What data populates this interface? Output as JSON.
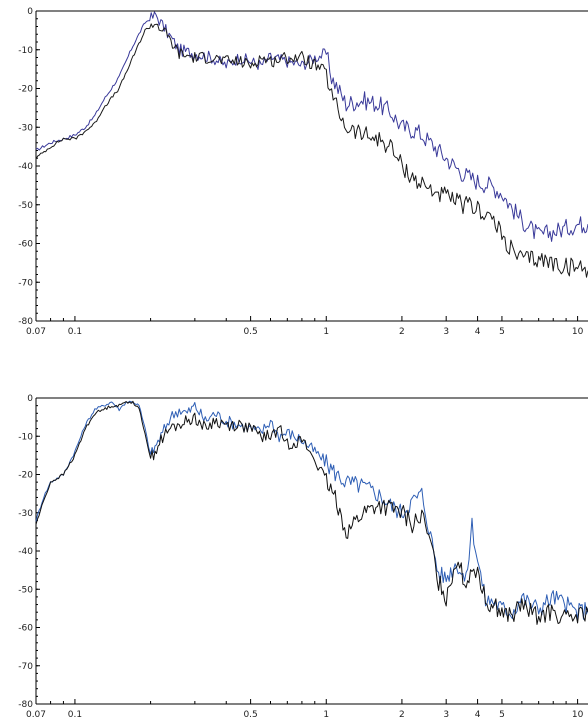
{
  "chart_data": [
    {
      "type": "line",
      "xscale": "log",
      "xlim": [
        0.07,
        11
      ],
      "ylim": [
        -80,
        0
      ],
      "xticks": [
        0.07,
        0.1,
        0.5,
        1,
        2,
        3,
        4,
        5,
        10
      ],
      "xtick_labels": [
        "0.07",
        "0.1",
        "0.5",
        "1",
        "2",
        "3",
        "4",
        "5",
        "10"
      ],
      "yticks": [
        0,
        -10,
        -20,
        -30,
        -40,
        -50,
        -60,
        -70,
        -80
      ],
      "ytick_labels": [
        "0",
        "-10",
        "-20",
        "-30",
        "-40",
        "-50",
        "-60",
        "-70",
        "-80"
      ],
      "grid": false,
      "title": "",
      "xlabel": "",
      "ylabel": "",
      "series": [
        {
          "color": "#3a3a9a",
          "x": [
            0.07,
            0.08,
            0.09,
            0.1,
            0.11,
            0.12,
            0.13,
            0.15,
            0.17,
            0.19,
            0.21,
            0.23,
            0.26,
            0.3,
            0.35,
            0.4,
            0.45,
            0.5,
            0.55,
            0.6,
            0.7,
            0.8,
            0.9,
            1.0,
            1.05,
            1.2,
            1.4,
            1.6,
            1.8,
            2.0,
            2.3,
            2.6,
            3.0,
            3.5,
            4.0,
            4.5,
            5.0,
            5.5,
            6.0,
            7.0,
            8.0,
            9.0,
            10.0,
            11.0
          ],
          "values": [
            -36,
            -34,
            -33,
            -32,
            -30,
            -27,
            -23,
            -17,
            -9,
            -3,
            -1,
            -5,
            -10,
            -11,
            -12,
            -14,
            -12,
            -13,
            -14,
            -12,
            -13,
            -14,
            -12,
            -11,
            -17,
            -24,
            -23,
            -24,
            -26,
            -30,
            -31,
            -34,
            -38,
            -42,
            -44,
            -45,
            -47,
            -51,
            -54,
            -58,
            -57,
            -56,
            -55,
            -55
          ]
        },
        {
          "color": "#1a1a1a",
          "x": [
            0.07,
            0.08,
            0.09,
            0.1,
            0.11,
            0.12,
            0.13,
            0.15,
            0.17,
            0.19,
            0.21,
            0.23,
            0.26,
            0.3,
            0.35,
            0.4,
            0.45,
            0.5,
            0.55,
            0.6,
            0.7,
            0.8,
            0.9,
            1.0,
            1.05,
            1.2,
            1.4,
            1.6,
            1.8,
            2.0,
            2.3,
            2.6,
            3.0,
            3.5,
            4.0,
            4.5,
            5.0,
            5.5,
            6.0,
            7.0,
            8.0,
            9.0,
            10.0,
            11.0
          ],
          "values": [
            -38,
            -35,
            -33,
            -33,
            -31,
            -29,
            -25,
            -20,
            -12,
            -5,
            -3,
            -6,
            -11,
            -12,
            -12,
            -13,
            -13,
            -14,
            -12,
            -13,
            -12,
            -12,
            -14,
            -16,
            -22,
            -30,
            -32,
            -33,
            -35,
            -40,
            -44,
            -46,
            -48,
            -50,
            -51,
            -53,
            -58,
            -62,
            -64,
            -64,
            -65,
            -66,
            -66,
            -67
          ]
        }
      ]
    },
    {
      "type": "line",
      "xscale": "log",
      "xlim": [
        0.07,
        11
      ],
      "ylim": [
        -80,
        0
      ],
      "xticks": [
        0.07,
        0.1,
        0.5,
        1,
        2,
        3,
        4,
        5,
        10
      ],
      "xtick_labels": [
        "0.07",
        "0.1",
        "0.5",
        "1",
        "2",
        "3",
        "4",
        "5",
        "10"
      ],
      "yticks": [
        0,
        -10,
        -20,
        -30,
        -40,
        -50,
        -60,
        -70,
        -80
      ],
      "ytick_labels": [
        "0",
        "-10",
        "-20",
        "-30",
        "-40",
        "-50",
        "-60",
        "-70",
        "-80"
      ],
      "grid": false,
      "title": "",
      "xlabel": "",
      "ylabel": "",
      "series": [
        {
          "color": "#2f5fb5",
          "x": [
            0.07,
            0.075,
            0.08,
            0.09,
            0.1,
            0.11,
            0.12,
            0.13,
            0.14,
            0.15,
            0.16,
            0.17,
            0.18,
            0.19,
            0.2,
            0.22,
            0.24,
            0.26,
            0.28,
            0.3,
            0.33,
            0.36,
            0.4,
            0.45,
            0.5,
            0.55,
            0.6,
            0.65,
            0.7,
            0.8,
            0.9,
            1.0,
            1.1,
            1.2,
            1.4,
            1.6,
            1.8,
            2.0,
            2.2,
            2.4,
            2.6,
            2.8,
            3.0,
            3.3,
            3.6,
            3.8,
            4.0,
            4.3,
            4.6,
            5.0,
            5.5,
            6.0,
            6.5,
            7.0,
            8.0,
            9.0,
            10.0,
            11.0
          ],
          "values": [
            -32,
            -26,
            -22,
            -20,
            -14,
            -7,
            -3,
            -2,
            -1,
            -3,
            -1,
            -1,
            -2,
            -8,
            -15,
            -10,
            -5,
            -3,
            -4,
            -2,
            -6,
            -4,
            -6,
            -7,
            -8,
            -9,
            -6,
            -10,
            -9,
            -11,
            -14,
            -17,
            -20,
            -22,
            -23,
            -25,
            -28,
            -30,
            -27,
            -25,
            -36,
            -46,
            -47,
            -43,
            -48,
            -33,
            -42,
            -53,
            -53,
            -55,
            -56,
            -52,
            -54,
            -55,
            -52,
            -54,
            -56,
            -55
          ]
        },
        {
          "color": "#111111",
          "x": [
            0.07,
            0.075,
            0.08,
            0.09,
            0.1,
            0.11,
            0.12,
            0.13,
            0.14,
            0.15,
            0.16,
            0.17,
            0.18,
            0.19,
            0.2,
            0.22,
            0.24,
            0.26,
            0.28,
            0.3,
            0.33,
            0.36,
            0.4,
            0.45,
            0.5,
            0.55,
            0.6,
            0.65,
            0.7,
            0.8,
            0.9,
            1.0,
            1.1,
            1.2,
            1.4,
            1.6,
            1.8,
            2.0,
            2.2,
            2.4,
            2.6,
            2.8,
            3.0,
            3.3,
            3.6,
            3.8,
            4.0,
            4.3,
            4.6,
            5.0,
            5.5,
            6.0,
            6.5,
            7.0,
            8.0,
            9.0,
            10.0,
            11.0
          ],
          "values": [
            -33,
            -27,
            -22,
            -20,
            -15,
            -8,
            -4,
            -3,
            -2,
            -2,
            -1,
            -1,
            -3,
            -9,
            -16,
            -11,
            -8,
            -7,
            -6,
            -5,
            -8,
            -6,
            -7,
            -7,
            -8,
            -10,
            -10,
            -8,
            -12,
            -11,
            -16,
            -22,
            -27,
            -35,
            -30,
            -28,
            -29,
            -30,
            -33,
            -31,
            -38,
            -48,
            -52,
            -42,
            -49,
            -44,
            -45,
            -53,
            -54,
            -56,
            -57,
            -54,
            -56,
            -57,
            -56,
            -58,
            -57,
            -56
          ]
        }
      ]
    }
  ]
}
